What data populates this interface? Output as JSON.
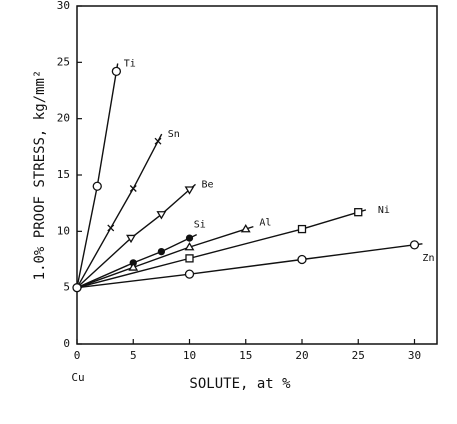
{
  "chart_data": {
    "type": "line",
    "y_label": "1.0% PROOF STRESS, kg/mm²",
    "x_label": "SOLUTE, at %",
    "base_label": "Cu",
    "xlim": [
      0,
      32
    ],
    "ylim": [
      0,
      30
    ],
    "xticks": [
      0,
      5,
      10,
      15,
      20,
      25,
      30
    ],
    "yticks": [
      0,
      5,
      10,
      15,
      20,
      25,
      30
    ],
    "grid": false,
    "series": [
      {
        "name": "Ti",
        "color": "#111111",
        "marker": "open-circle",
        "x": [
          0,
          1.8,
          3.5
        ],
        "values": [
          5,
          14,
          24.2
        ]
      },
      {
        "name": "Sn",
        "color": "#111111",
        "marker": "cross",
        "x": [
          0,
          3,
          5,
          7.2
        ],
        "values": [
          5,
          10.3,
          13.8,
          18
        ]
      },
      {
        "name": "Be",
        "color": "#111111",
        "marker": "triangle-down",
        "x": [
          0,
          4.8,
          7.5,
          10
        ],
        "values": [
          5,
          9.4,
          11.5,
          13.7
        ]
      },
      {
        "name": "Si",
        "color": "#111111",
        "marker": "filled-circle",
        "x": [
          0,
          5,
          7.5,
          10
        ],
        "values": [
          5,
          7.2,
          8.2,
          9.4
        ]
      },
      {
        "name": "Al",
        "color": "#111111",
        "marker": "triangle-up",
        "x": [
          0,
          5,
          10,
          15
        ],
        "values": [
          5,
          6.8,
          8.6,
          10.2
        ]
      },
      {
        "name": "Ni",
        "color": "#111111",
        "marker": "square",
        "x": [
          0,
          10,
          20,
          25
        ],
        "values": [
          5,
          7.6,
          10.2,
          11.7
        ]
      },
      {
        "name": "Zn",
        "color": "#111111",
        "marker": "open-circle",
        "x": [
          0,
          10,
          20,
          30
        ],
        "values": [
          5,
          6.2,
          7.5,
          8.8
        ]
      }
    ]
  }
}
